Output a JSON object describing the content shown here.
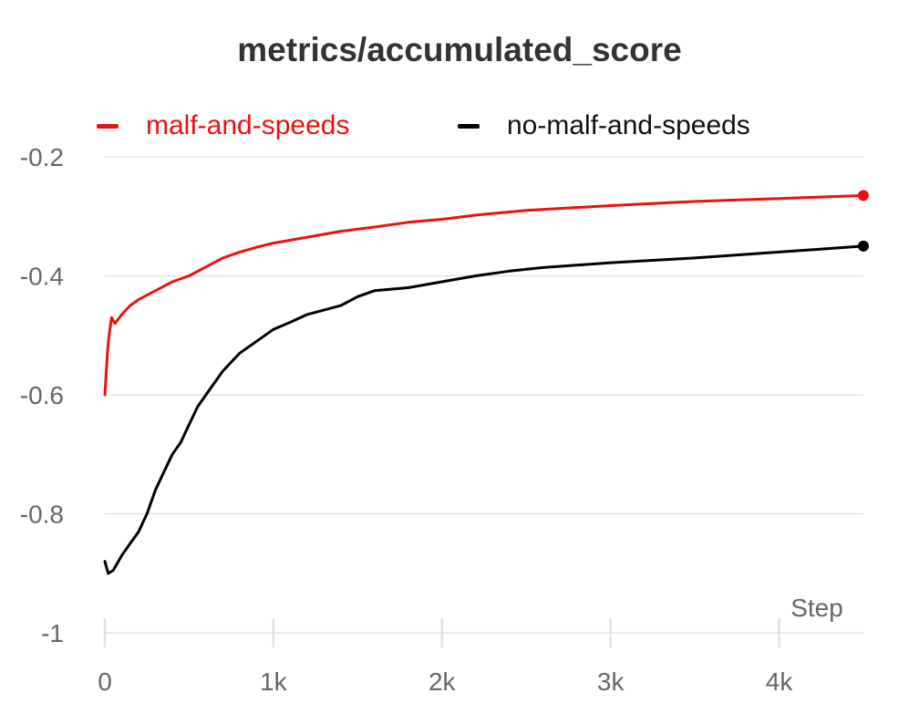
{
  "chart_data": {
    "type": "line",
    "title": "metrics/accumulated_score",
    "xlabel": "Step",
    "ylabel": "",
    "xlim": [
      0,
      4500
    ],
    "ylim": [
      -1,
      -0.2
    ],
    "x_ticks": [
      {
        "value": 0,
        "label": "0"
      },
      {
        "value": 1000,
        "label": "1k"
      },
      {
        "value": 2000,
        "label": "2k"
      },
      {
        "value": 3000,
        "label": "3k"
      },
      {
        "value": 4000,
        "label": "4k"
      }
    ],
    "y_ticks": [
      {
        "value": -0.2,
        "label": "-0.2"
      },
      {
        "value": -0.4,
        "label": "-0.4"
      },
      {
        "value": -0.6,
        "label": "-0.6"
      },
      {
        "value": -0.8,
        "label": "-0.8"
      },
      {
        "value": -1.0,
        "label": "-1"
      }
    ],
    "grid": true,
    "legend_position": "top",
    "series": [
      {
        "name": "malf-and-speeds",
        "color": "#e8130f",
        "x": [
          0,
          15,
          25,
          40,
          60,
          100,
          150,
          200,
          300,
          400,
          500,
          600,
          700,
          800,
          900,
          1000,
          1200,
          1400,
          1600,
          1800,
          2000,
          2200,
          2500,
          3000,
          3500,
          4000,
          4500
        ],
        "y": [
          -0.6,
          -0.53,
          -0.5,
          -0.47,
          -0.48,
          -0.465,
          -0.45,
          -0.44,
          -0.425,
          -0.41,
          -0.4,
          -0.385,
          -0.37,
          -0.36,
          -0.352,
          -0.345,
          -0.335,
          -0.325,
          -0.318,
          -0.31,
          -0.305,
          -0.298,
          -0.29,
          -0.282,
          -0.275,
          -0.27,
          -0.265
        ]
      },
      {
        "name": "no-malf-and-speeds",
        "color": "#000000",
        "x": [
          0,
          20,
          50,
          80,
          100,
          150,
          200,
          250,
          300,
          350,
          400,
          450,
          500,
          550,
          600,
          700,
          800,
          900,
          1000,
          1100,
          1200,
          1400,
          1500,
          1600,
          1800,
          2000,
          2200,
          2400,
          2600,
          3000,
          3500,
          4000,
          4500
        ],
        "y": [
          -0.88,
          -0.9,
          -0.895,
          -0.88,
          -0.87,
          -0.85,
          -0.83,
          -0.8,
          -0.76,
          -0.73,
          -0.7,
          -0.68,
          -0.65,
          -0.62,
          -0.6,
          -0.56,
          -0.53,
          -0.51,
          -0.49,
          -0.478,
          -0.465,
          -0.45,
          -0.435,
          -0.425,
          -0.42,
          -0.41,
          -0.4,
          -0.392,
          -0.386,
          -0.378,
          -0.37,
          -0.36,
          -0.35
        ]
      }
    ]
  }
}
